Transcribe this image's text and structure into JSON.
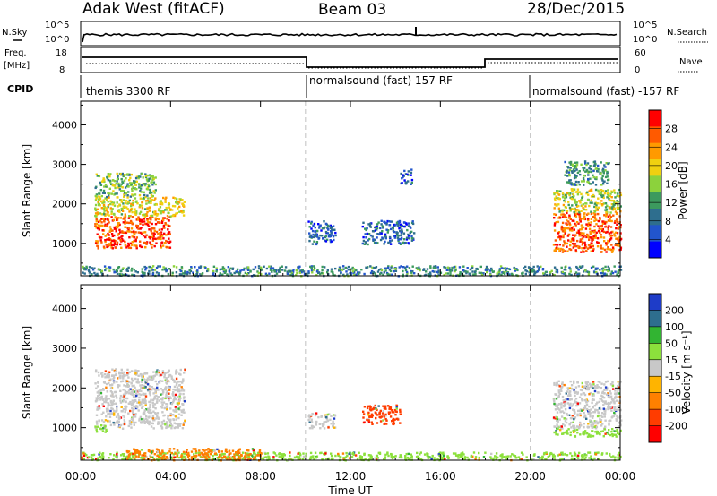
{
  "header": {
    "station": "Adak West (fitACF)",
    "beam": "Beam 03",
    "date": "28/Dec/2015"
  },
  "panels": {
    "nsky": {
      "left_label": "N.Sky",
      "right_label": "N.Search",
      "tick_top": "10^5",
      "tick_bottom": "10^0"
    },
    "freq": {
      "left_label_1": "Freq.",
      "left_label_2": "[MHz]",
      "right_label": "Nave",
      "left_ticks": [
        "18",
        "8"
      ],
      "right_ticks": [
        "60",
        "0"
      ]
    },
    "cpid": {
      "label": "CPID",
      "segments": [
        {
          "start": 0,
          "end": 10,
          "text": "themis 3300 RF"
        },
        {
          "start": 10,
          "end": 20,
          "text": "normalsound (fast) 157 RF"
        },
        {
          "start": 20,
          "end": 24,
          "text": "normalsound (fast) -157 RF"
        }
      ]
    }
  },
  "colors": {
    "power": [
      "#0000ff",
      "#2255cc",
      "#2e6e8e",
      "#3c9a5e",
      "#8cd23c",
      "#f0d010",
      "#ff9a00",
      "#ff5a00",
      "#ff0000"
    ],
    "velocity": [
      "#ff0000",
      "#ff3c00",
      "#ff8000",
      "#ffb400",
      "#c8c8c8",
      "#8ce03c",
      "#32b432",
      "#2e6e8e",
      "#1e3cc8"
    ]
  },
  "chart_data": [
    {
      "type": "heatmap",
      "name": "power",
      "xlabel": "",
      "ylabel": "Slant Range [km]",
      "xlim": [
        0,
        24
      ],
      "ylim": [
        180,
        4600
      ],
      "yticks": [
        1000,
        2000,
        3000,
        4000
      ],
      "colorbar": {
        "label": "Power [dB]",
        "range": [
          0,
          32
        ],
        "ticks": [
          "4",
          "8",
          "12",
          "16",
          "20",
          "24",
          "28"
        ]
      },
      "regions": [
        {
          "t": [
            0.6,
            4.0
          ],
          "r": [
            900,
            1700
          ],
          "level": 0.9
        },
        {
          "t": [
            0.6,
            4.6
          ],
          "r": [
            1700,
            2200
          ],
          "level": 0.6
        },
        {
          "t": [
            0.6,
            3.3
          ],
          "r": [
            2200,
            2800
          ],
          "level": 0.45
        },
        {
          "t": [
            10.1,
            11.3
          ],
          "r": [
            1000,
            1600
          ],
          "level": 0.2
        },
        {
          "t": [
            12.5,
            14.8
          ],
          "r": [
            1000,
            1600
          ],
          "level": 0.2
        },
        {
          "t": [
            14.2,
            14.7
          ],
          "r": [
            2500,
            2900
          ],
          "level": 0.15
        },
        {
          "t": [
            21.0,
            24.0
          ],
          "r": [
            800,
            1800
          ],
          "level": 0.88
        },
        {
          "t": [
            21.0,
            24.0
          ],
          "r": [
            1800,
            2400
          ],
          "level": 0.55
        },
        {
          "t": [
            21.5,
            23.5
          ],
          "r": [
            2500,
            3100
          ],
          "level": 0.35
        },
        {
          "t": [
            0.0,
            24.0
          ],
          "r": [
            200,
            450
          ],
          "level": 0.3
        }
      ]
    },
    {
      "type": "heatmap",
      "name": "velocity",
      "xlabel": "Time UT",
      "ylabel": "Slant Range [km]",
      "xlim": [
        0,
        24
      ],
      "ylim": [
        180,
        4600
      ],
      "yticks": [
        1000,
        2000,
        3000,
        4000
      ],
      "xticks": [
        "00:00",
        "04:00",
        "08:00",
        "12:00",
        "16:00",
        "20:00",
        "00:00"
      ],
      "colorbar": {
        "label": "Velocity [m s⁻¹]",
        "ticks": [
          "200",
          "100",
          "50",
          "15",
          "-15",
          "-50",
          "-100",
          "-200"
        ]
      },
      "regions": [
        {
          "t": [
            0.6,
            4.6
          ],
          "r": [
            1000,
            2500
          ],
          "velocity": 0
        },
        {
          "t": [
            0.6,
            1.2
          ],
          "r": [
            900,
            1100
          ],
          "velocity": 30
        },
        {
          "t": [
            10.1,
            11.3
          ],
          "r": [
            1000,
            1400
          ],
          "velocity": 0
        },
        {
          "t": [
            12.5,
            14.2
          ],
          "r": [
            1100,
            1600
          ],
          "velocity": -60
        },
        {
          "t": [
            21.0,
            24.0
          ],
          "r": [
            1000,
            2200
          ],
          "velocity": 0
        },
        {
          "t": [
            21.0,
            24.0
          ],
          "r": [
            800,
            1000
          ],
          "velocity": 40
        },
        {
          "t": [
            0.0,
            24.0
          ],
          "r": [
            200,
            400
          ],
          "velocity": 25
        },
        {
          "t": [
            2.0,
            8.0
          ],
          "r": [
            200,
            500
          ],
          "velocity": -40
        }
      ]
    }
  ]
}
